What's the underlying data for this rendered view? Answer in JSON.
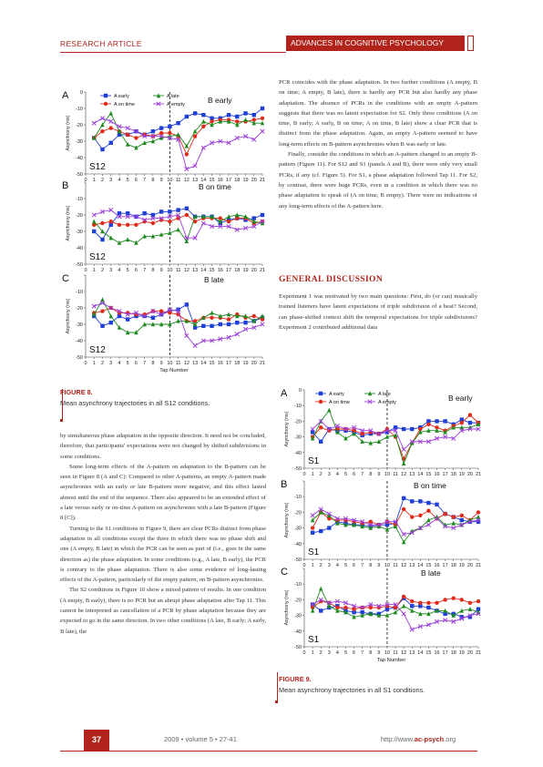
{
  "header": {
    "left": "RESEARCH ARTICLE",
    "right": "ADVANCES IN COGNITIVE PSYCHOLOGY"
  },
  "fig8": {
    "title": "FIGURE 8.",
    "text": "Mean asynchrony trajectories in all S12 conditions."
  },
  "fig9": {
    "title": "FIGURE 9.",
    "text": "Mean asynchrony trajectories in all S1 conditions."
  },
  "section": {
    "heading": "GENERAL DISCUSSION"
  },
  "right_col": {
    "p1": "PCR coincides with the phase adaptation. In two further conditions (A empty, B on time; A empty, B late), there is hardly any PCR but also hardly any phase adaptation. The absence of PCRs in the conditions with an empty A-pattern suggests that there was no latent expectation for S2. Only three conditions (A on time, B early; A early, B on time; A on time, B late) show a clear PCR that is distinct from the phase adaptation. Again, an empty A-pattern seemed to have long-term effects on B-pattern asynchronies when B was early or late.",
    "p2": "Finally, consider the conditions in which an A-pattern changed to an empty B-pattern (Figure 11). For S12 and S1 (panels A and B), there were only very small PCRs, if any (cf. Figure 5). For S1, a phase adaptation followed Tap 11. For S2, by contrast, there were huge PCRs, even in a condition in which there was no phase adaptation to speak of (A on time, B empty). There were no indications of any long-term effects of the A-pattern here.",
    "p3": "Experiment 1 was motivated by two main questions: First, do (or can) musically trained listeners have latent expectations of triple subdivision of a beat? Second, can phase-shifted context shift the temporal expectations for triple subdivisions? Experiment 2 contributed additional data"
  },
  "left_col": {
    "p1": "by simultaneous phase adaptation in the opposite direction. It need not be concluded, therefore, that participants' expectations were not changed by shifted subdivisions in some conditions.",
    "p2": "Some long-term effects of the A-pattern on adaptation to the B-pattern can be seen in Figure 8 (A and C): Compared to other A-patterns, an empty A-pattern made asynchronies with an early or late B-pattern more negative, and this effect lasted almost until the end of the sequence. There also appeared to be an extended effect of a late versus early or on-time A-pattern on asynchronies with a late B-pattern (Figure 8 [C]).",
    "p3": "Turning to the S1 conditions in Figure 9, there are clear PCRs distinct from phase adaptation in all conditions except the three in which there was no phase shift and one (A empty, B late) in which the PCR can be seen as part of (i.e., goes in the same direction as) the phase adaptation. In some conditions (e.g., A late, B early), the PCR is contrary to the phase adaptation. There is also some evidence of long-lasting effects of the A-pattern, particularly of the empty pattern, on B-pattern asynchronies.",
    "p4": "The S2 conditions in Figure 10 show a mixed pattern of results. In one condition (A empty, B early), there is no PCR but an abrupt phase adaptation after Tap 11. This cannot be interpreted as cancellation of a PCR by phase adaptation because they are expected to go in the same direction. In two other conditions (A late, B early; A early, B late), the"
  },
  "footer": {
    "page": "37",
    "volume": "2009 • volume 5 • 27-41",
    "url_pre": "http://www.",
    "url_bold": "ac-psych",
    "url_post": ".org"
  },
  "colors": {
    "accent": "#b0241c",
    "a_early": "#1f3fd6",
    "a_on_time": "#e02a1a",
    "a_late": "#1e8a1e",
    "a_empty": "#9b3fd8"
  },
  "chart_data": [
    {
      "type": "line",
      "figure": "FIGURE 8",
      "subject": "S12",
      "x": [
        0,
        1,
        2,
        3,
        4,
        5,
        6,
        7,
        8,
        9,
        10,
        11,
        12,
        13,
        14,
        15,
        16,
        17,
        18,
        19,
        20,
        21
      ],
      "xlabel": "Tap Number",
      "ylabel": "Asynchrony (ms)",
      "ylim": [
        -50,
        0
      ],
      "yticks": [
        0,
        -10,
        -20,
        -30,
        -40,
        -50
      ],
      "legend": [
        "A early",
        "A late",
        "A on time",
        "A empty"
      ],
      "panels": [
        {
          "letter": "A",
          "label": "B early",
          "subject_label": "S12",
          "series": [
            {
              "name": "A early",
              "values": [
                null,
                -28,
                -35,
                -31,
                -26,
                -26,
                -24,
                -26,
                -24,
                -22,
                -21,
                -19,
                -15,
                -13,
                -14,
                -16,
                -16,
                -14,
                -15,
                -13,
                -14,
                -10
              ]
            },
            {
              "name": "A on time",
              "values": [
                null,
                -28,
                -24,
                -22,
                -24,
                -26,
                -28,
                -26,
                -27,
                -25,
                -25,
                -27,
                -38,
                -27,
                -21,
                -18,
                -17,
                -17,
                -18,
                -18,
                -17,
                -16
              ]
            },
            {
              "name": "A late",
              "values": [
                null,
                -28,
                -20,
                -13,
                -24,
                -32,
                -34,
                -31,
                -30,
                -28,
                -27,
                -26,
                -33,
                -24,
                -18,
                -20,
                -18,
                -18,
                -20,
                -17,
                -19,
                -19
              ]
            },
            {
              "name": "A empty",
              "values": [
                null,
                -19,
                -16,
                -18,
                -21,
                -22,
                -24,
                -27,
                -27,
                -27,
                -28,
                -29,
                -47,
                -45,
                -34,
                -31,
                -30,
                -31,
                -28,
                -27,
                -29,
                -24
              ]
            }
          ]
        },
        {
          "letter": "B",
          "label": "B on time",
          "subject_label": "S12",
          "series": [
            {
              "name": "A early",
              "values": [
                null,
                -30,
                -35,
                -26,
                -19,
                -19,
                -21,
                -19,
                -20,
                -18,
                -18,
                -17,
                -16,
                -21,
                -21,
                -21,
                -25,
                -23,
                -22,
                -23,
                -22,
                -20
              ]
            },
            {
              "name": "A on time",
              "values": [
                null,
                -26,
                -25,
                -24,
                -26,
                -26,
                -26,
                -24,
                -25,
                -23,
                -24,
                -22,
                -20,
                -24,
                -22,
                -22,
                -22,
                -24,
                -22,
                -22,
                -25,
                -24
              ]
            },
            {
              "name": "A late",
              "values": [
                null,
                -24,
                -30,
                -34,
                -37,
                -35,
                -37,
                -33,
                -33,
                -32,
                -31,
                -29,
                -36,
                -21,
                -21,
                -21,
                -24,
                -21,
                -20,
                -21,
                -24,
                -25
              ]
            },
            {
              "name": "A empty",
              "values": [
                null,
                -20,
                -18,
                -17,
                -21,
                -21,
                -21,
                -23,
                -22,
                -22,
                -21,
                -20,
                -34,
                -34,
                -25,
                -27,
                -27,
                -27,
                -29,
                -28,
                -27,
                -24
              ]
            }
          ]
        },
        {
          "letter": "C",
          "label": "B late",
          "subject_label": "S12",
          "series": [
            {
              "name": "A early",
              "values": [
                null,
                -25,
                -31,
                -29,
                -25,
                -27,
                -25,
                -25,
                -26,
                -24,
                -22,
                -21,
                -18,
                -32,
                -31,
                -31,
                -30,
                -30,
                -29,
                -29,
                -28,
                -26
              ]
            },
            {
              "name": "A on time",
              "values": [
                null,
                -23,
                -22,
                -20,
                -23,
                -23,
                -24,
                -24,
                -22,
                -22,
                -23,
                -24,
                -28,
                -28,
                -26,
                -26,
                -26,
                -27,
                -24,
                -26,
                -25,
                -27
              ]
            },
            {
              "name": "A late",
              "values": [
                null,
                -24,
                -15,
                -25,
                -32,
                -35,
                -35,
                -30,
                -30,
                -30,
                -30,
                -28,
                -28,
                -30,
                -26,
                -23,
                -25,
                -24,
                -25,
                -25,
                -28,
                -25
              ]
            },
            {
              "name": "A empty",
              "values": [
                null,
                -19,
                -17,
                -20,
                -22,
                -24,
                -23,
                -25,
                -22,
                -24,
                -21,
                -22,
                -37,
                -43,
                -40,
                -40,
                -39,
                -38,
                -36,
                -33,
                -32,
                -30
              ]
            }
          ]
        }
      ]
    },
    {
      "type": "line",
      "figure": "FIGURE 9",
      "subject": "S1",
      "x": [
        0,
        1,
        2,
        3,
        4,
        5,
        6,
        7,
        8,
        9,
        10,
        11,
        12,
        13,
        14,
        15,
        16,
        17,
        18,
        19,
        20,
        21
      ],
      "xlabel": "Tap Number",
      "ylabel": "Asynchrony (ms)",
      "ylim": [
        -50,
        0
      ],
      "yticks": [
        0,
        -10,
        -20,
        -30,
        -40,
        -50
      ],
      "legend": [
        "A early",
        "A late",
        "A on time",
        "A empty"
      ],
      "panels": [
        {
          "letter": "A",
          "label": "B early",
          "subject_label": "S1",
          "series": [
            {
              "name": "A early",
              "values": [
                null,
                -27,
                -33,
                -25,
                -26,
                -26,
                -27,
                -29,
                -28,
                -28,
                -27,
                -24,
                -25,
                -25,
                -24,
                -20,
                -20,
                -20,
                -22,
                -19,
                -21,
                -21
              ]
            },
            {
              "name": "A on time",
              "values": [
                null,
                -30,
                -24,
                -26,
                -25,
                -25,
                -26,
                -28,
                -27,
                -28,
                -25,
                -30,
                -44,
                -34,
                -25,
                -22,
                -24,
                -26,
                -23,
                -21,
                -16,
                -21
              ]
            },
            {
              "name": "A late",
              "values": [
                null,
                -31,
                -20,
                -13,
                -27,
                -31,
                -28,
                -33,
                -34,
                -33,
                -30,
                -29,
                -47,
                -34,
                -27,
                -26,
                -26,
                -27,
                -24,
                -24,
                -24,
                -22
              ]
            },
            {
              "name": "A empty",
              "values": [
                null,
                -25,
                -20,
                -25,
                -23,
                -25,
                -24,
                -26,
                -26,
                -28,
                -26,
                -26,
                -38,
                -33,
                -33,
                -33,
                -31,
                -30,
                -31,
                -26,
                -25,
                -25
              ]
            }
          ]
        },
        {
          "letter": "B",
          "label": "B on time",
          "subject_label": "S1",
          "series": [
            {
              "name": "A early",
              "values": [
                null,
                -33,
                -32,
                -30,
                -26,
                -27,
                -28,
                -28,
                -29,
                -28,
                -28,
                -27,
                -11,
                -13,
                -13,
                -14,
                -15,
                -21,
                -23,
                -25,
                -26,
                -26
              ]
            },
            {
              "name": "A on time",
              "values": [
                null,
                -30,
                -20,
                -24,
                -25,
                -25,
                -26,
                -27,
                -26,
                -28,
                -26,
                -28,
                -18,
                -23,
                -22,
                -19,
                -24,
                -21,
                -23,
                -22,
                -25,
                -20
              ]
            },
            {
              "name": "A late",
              "values": [
                null,
                -25,
                -20,
                -22,
                -27,
                -28,
                -28,
                -29,
                -30,
                -29,
                -31,
                -29,
                -39,
                -32,
                -30,
                -25,
                -23,
                -28,
                -27,
                -28,
                -25,
                -23
              ]
            },
            {
              "name": "A empty",
              "values": [
                null,
                -22,
                -18,
                -21,
                -24,
                -24,
                -25,
                -26,
                -28,
                -28,
                -26,
                -26,
                -34,
                -33,
                -30,
                -28,
                -24,
                -29,
                -30,
                -28,
                -26,
                -25
              ]
            }
          ]
        },
        {
          "letter": "C",
          "label": "B late",
          "subject_label": "S1",
          "series": [
            {
              "name": "A early",
              "values": [
                null,
                -23,
                -27,
                -25,
                -24,
                -27,
                -28,
                -28,
                -29,
                -29,
                -26,
                -25,
                -19,
                -24,
                -24,
                -25,
                -27,
                -29,
                -29,
                -31,
                -31,
                -26
              ]
            },
            {
              "name": "A on time",
              "values": [
                null,
                -25,
                -21,
                -22,
                -25,
                -25,
                -26,
                -25,
                -25,
                -25,
                -24,
                -25,
                -18,
                -21,
                -22,
                -22,
                -22,
                -20,
                -19,
                -20,
                -22,
                -21
              ]
            },
            {
              "name": "A late",
              "values": [
                null,
                -27,
                -13,
                -24,
                -27,
                -28,
                -31,
                -30,
                -29,
                -30,
                -30,
                -28,
                -24,
                -27,
                -29,
                -29,
                -27,
                -27,
                -30,
                -27,
                -26,
                -28
              ]
            },
            {
              "name": "A empty",
              "values": [
                null,
                -23,
                -20,
                -22,
                -21,
                -22,
                -24,
                -25,
                -23,
                -24,
                -23,
                -23,
                -29,
                -39,
                -37,
                -36,
                -34,
                -33,
                -34,
                -32,
                -30,
                -29
              ]
            }
          ]
        }
      ]
    }
  ]
}
